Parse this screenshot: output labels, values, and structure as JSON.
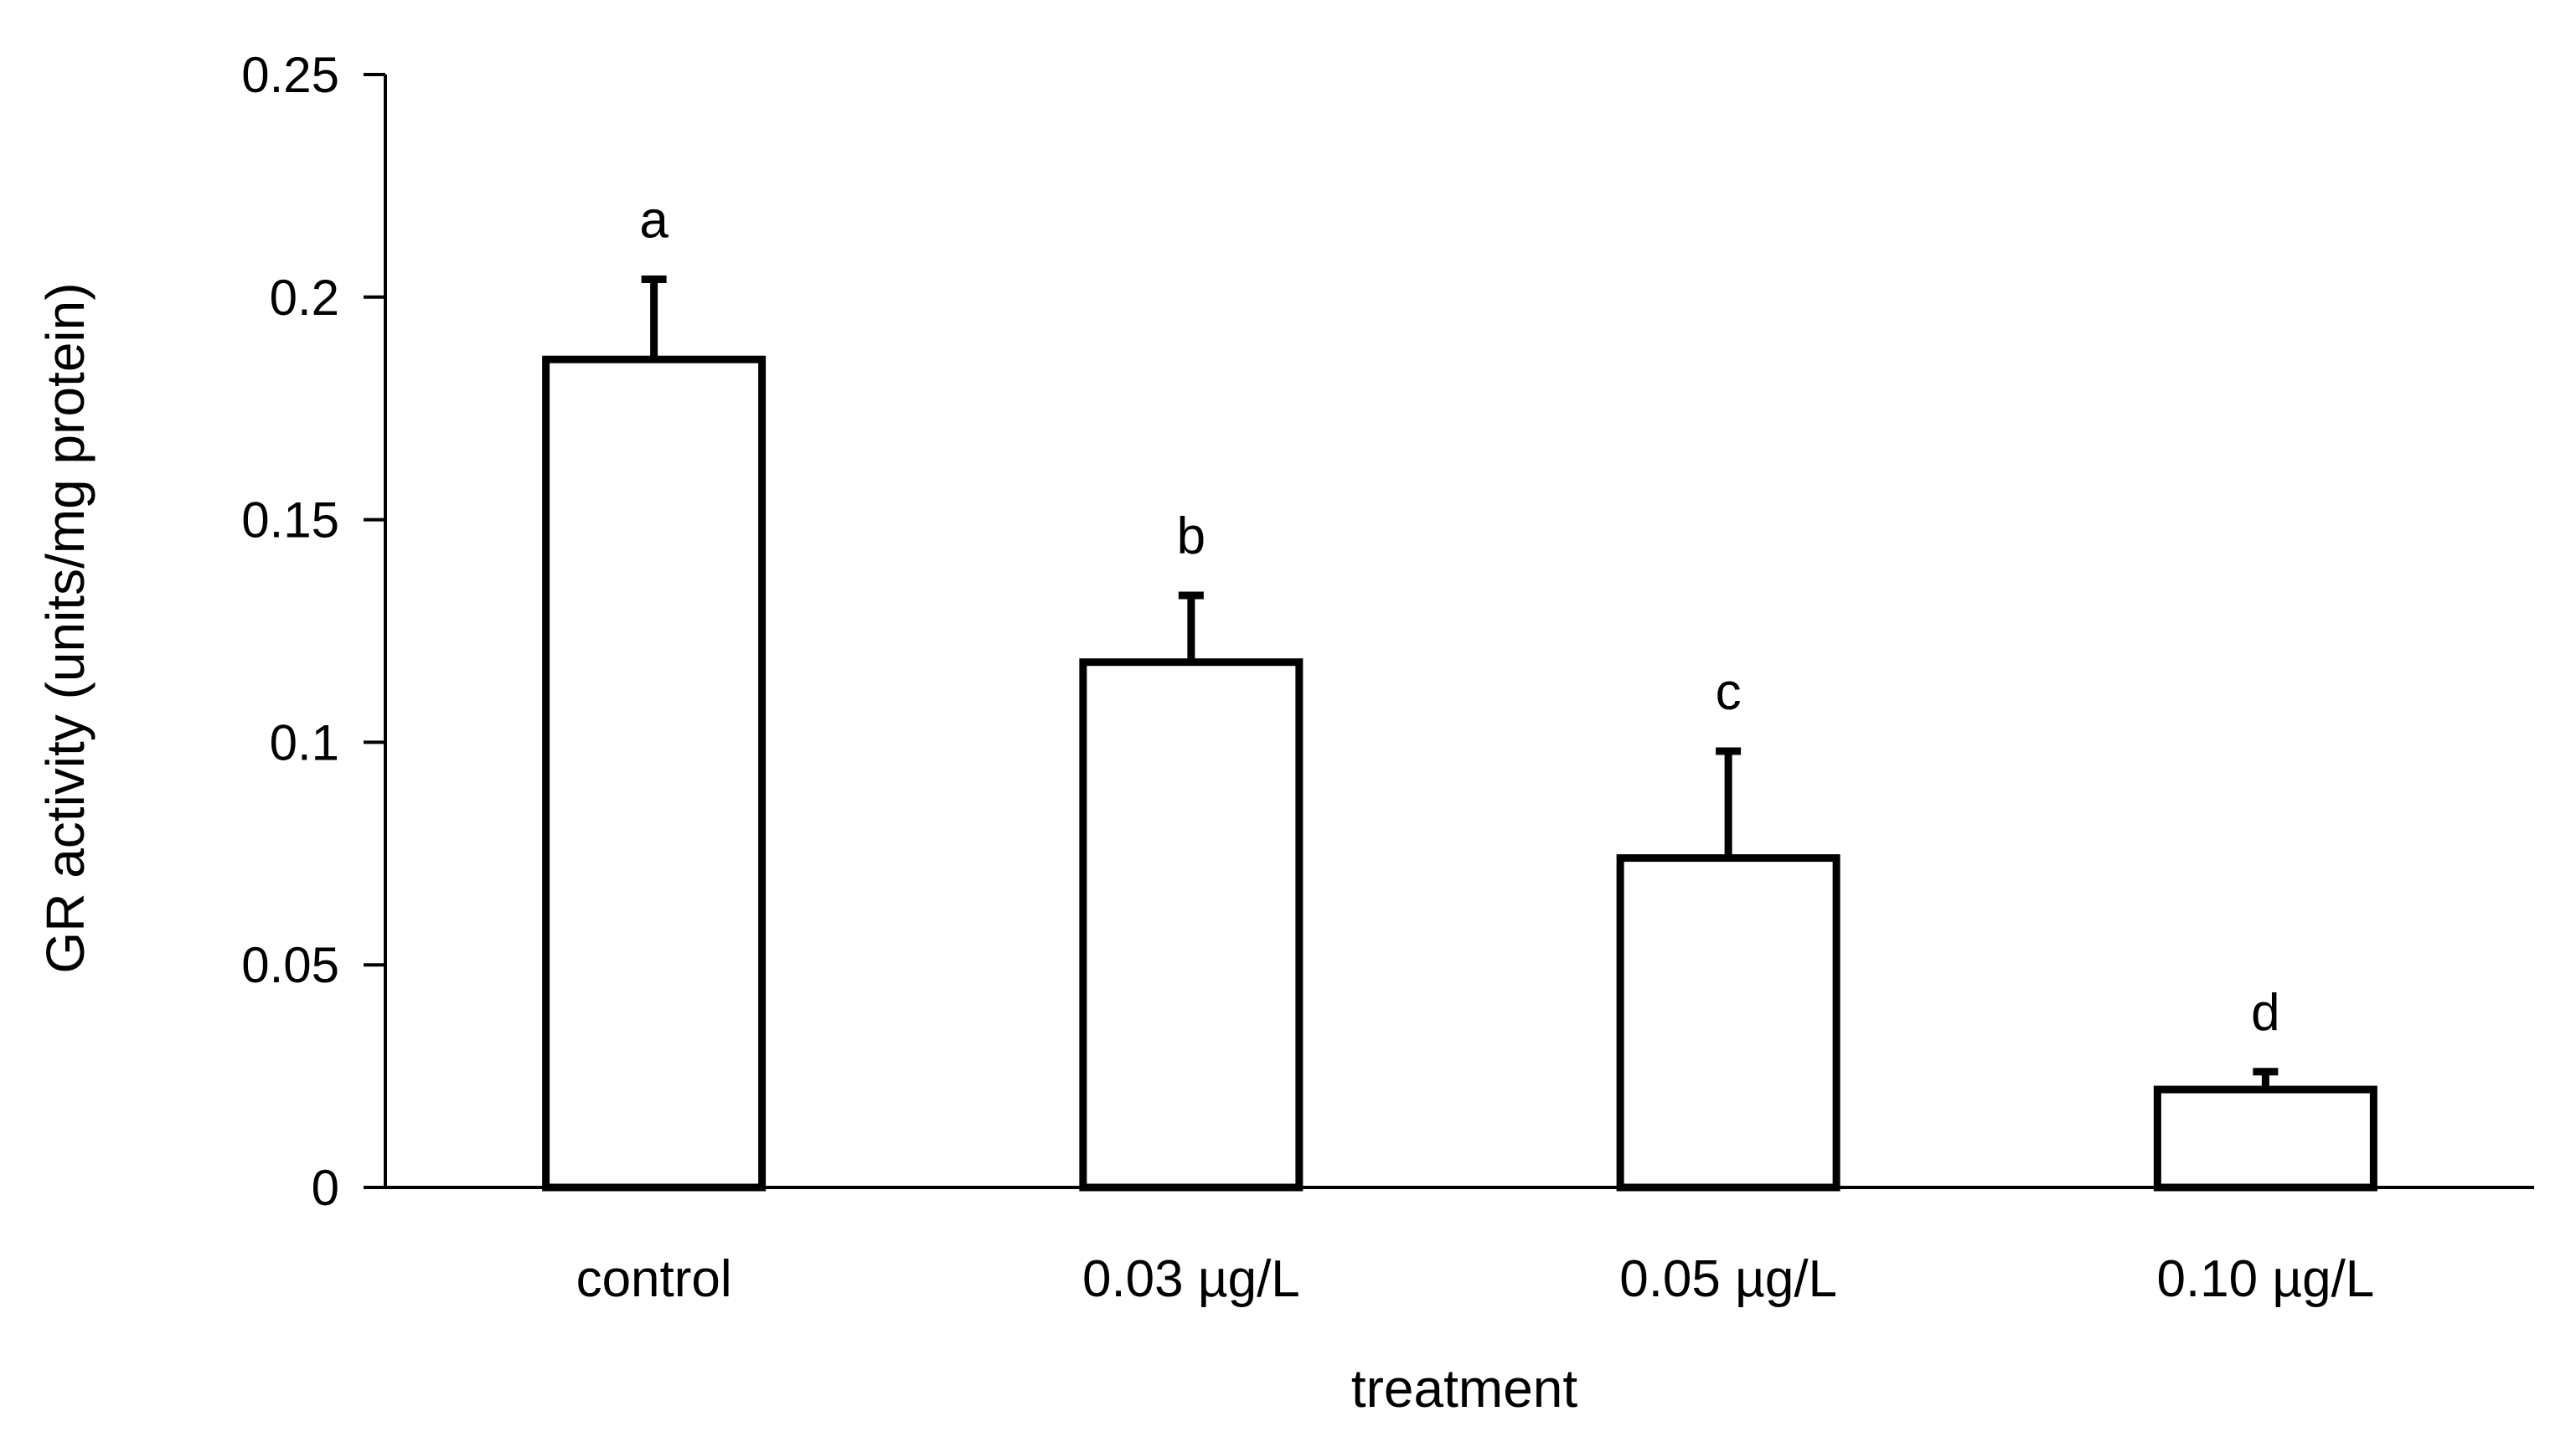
{
  "chart_data": {
    "type": "bar",
    "title": "",
    "xlabel": "treatment",
    "ylabel": "GR activity (units/mg protein)",
    "ylim": [
      0,
      0.25
    ],
    "yticks": [
      0,
      0.05,
      0.1,
      0.15,
      0.2,
      0.25
    ],
    "ytick_labels": [
      "0",
      "0.05",
      "0.1",
      "0.15",
      "0.2",
      "0.25"
    ],
    "categories": [
      "control",
      "0.03 µg/L",
      "0.05 µg/L",
      "0.10 µg/L"
    ],
    "values": [
      0.186,
      0.118,
      0.074,
      0.022
    ],
    "error_upper": [
      0.018,
      0.015,
      0.024,
      0.004
    ],
    "significance_labels": [
      "a",
      "b",
      "c",
      "d"
    ],
    "grid": false,
    "legend": "none",
    "colors": {
      "bar_fill": "#ffffff",
      "bar_stroke": "#000000",
      "axis": "#000000"
    }
  }
}
